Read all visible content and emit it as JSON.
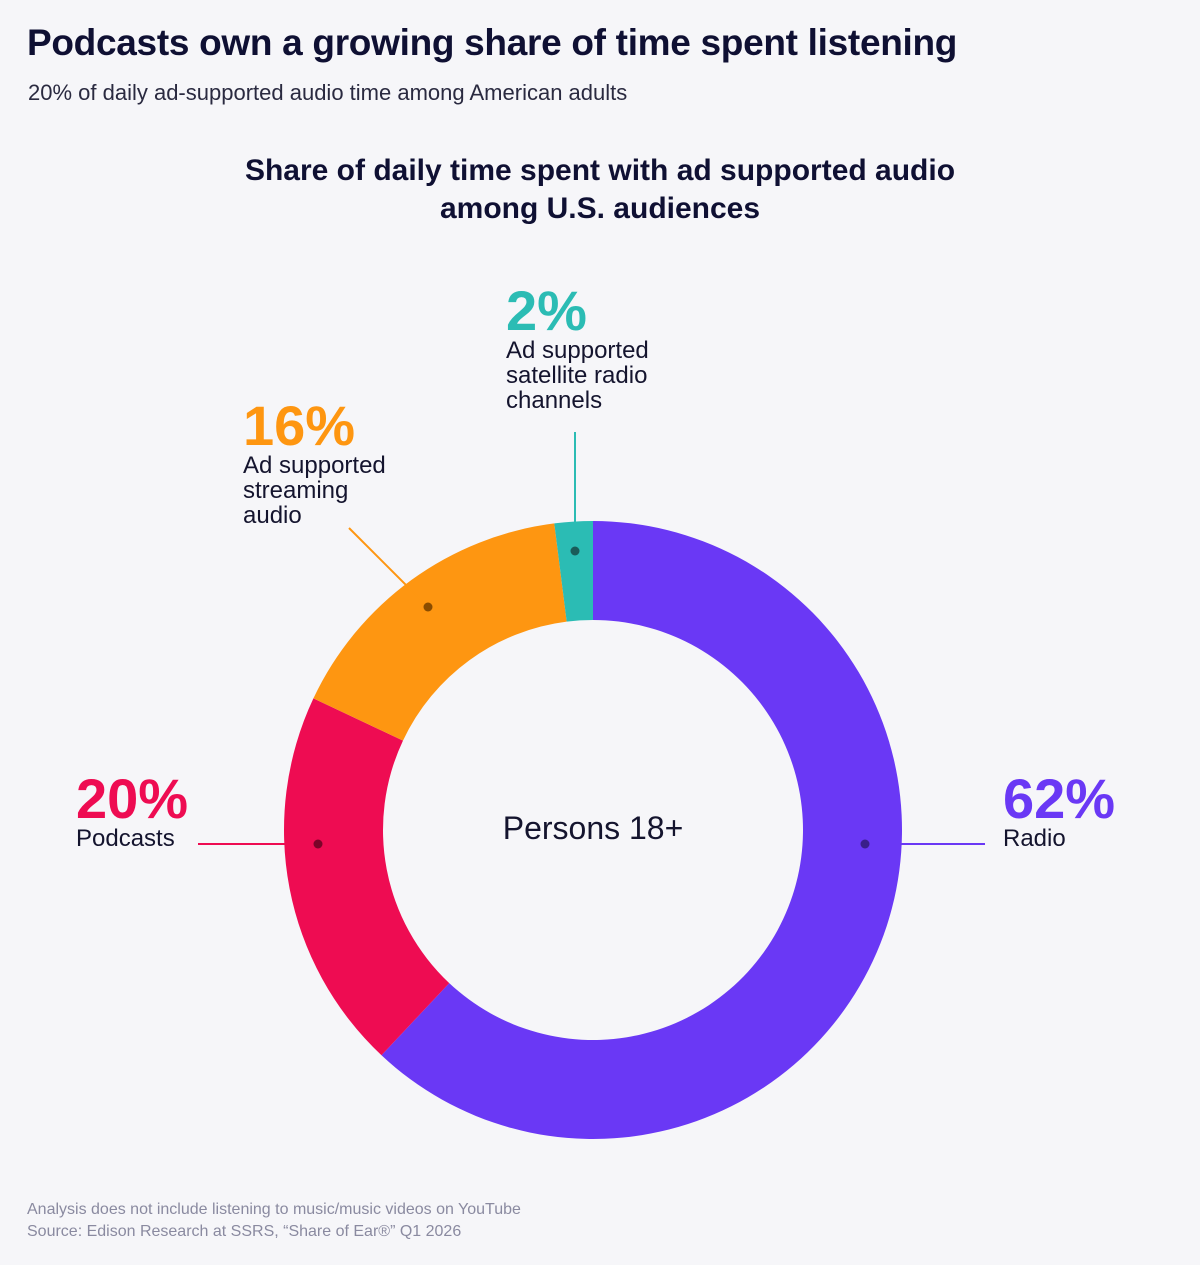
{
  "header": {
    "title": "Podcasts own a growing share of time spent listening",
    "subtitle": "20% of daily ad-supported audio time among American adults"
  },
  "chart_data": {
    "type": "pie",
    "variant": "donut",
    "title_lines": [
      "Share of daily time spent with ad supported audio",
      "among U.S. audiences"
    ],
    "center_label": "Persons 18+",
    "slices": [
      {
        "label": "Radio",
        "label_lines": [
          "Radio"
        ],
        "value": 62,
        "value_label": "62%",
        "color": "#6a38f5"
      },
      {
        "label": "Podcasts",
        "label_lines": [
          "Podcasts"
        ],
        "value": 20,
        "value_label": "20%",
        "color": "#ee0c52"
      },
      {
        "label": "Ad supported streaming audio",
        "label_lines": [
          "Ad supported",
          "streaming",
          "audio"
        ],
        "value": 16,
        "value_label": "16%",
        "color": "#fe9611"
      },
      {
        "label": "Ad supported satellite radio channels",
        "label_lines": [
          "Ad supported",
          "satellite radio",
          "channels"
        ],
        "value": 2,
        "value_label": "2%",
        "color": "#2bbcb4"
      }
    ]
  },
  "footer": {
    "note": "Analysis does not include listening to music/music videos on YouTube",
    "source": "Source: Edison Research at SSRS, “Share of Ear®” Q1 2026"
  }
}
